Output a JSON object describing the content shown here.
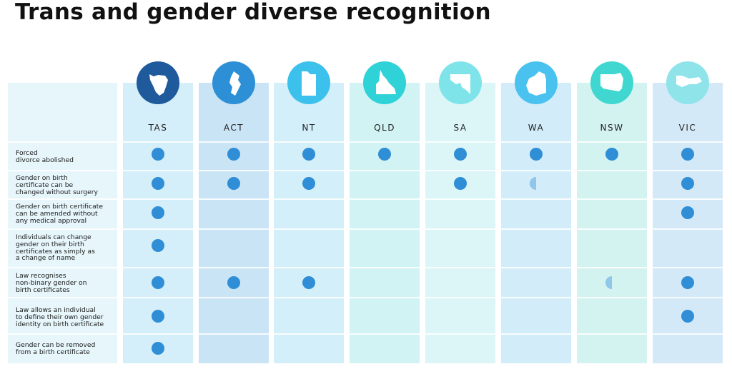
{
  "title": "Trans and gender diverse recognition",
  "colors": {
    "dot": "#2f8ed6",
    "partial_dot": "#8fc6ea"
  },
  "states": [
    {
      "code": "TAS",
      "badge_color": "#1e5a9c",
      "col_color": "#d4eefa",
      "icon": "tasmania-map-icon"
    },
    {
      "code": "ACT",
      "badge_color": "#2d8fd6",
      "col_color": "#c9e4f5",
      "icon": "act-map-icon"
    },
    {
      "code": "NT",
      "badge_color": "#3cc0ec",
      "col_color": "#d3eff9",
      "icon": "northern-territory-map-icon"
    },
    {
      "code": "QLD",
      "badge_color": "#2fd2d6",
      "col_color": "#d2f3f3",
      "icon": "queensland-map-icon"
    },
    {
      "code": "SA",
      "badge_color": "#7fe3ea",
      "col_color": "#dcf6f7",
      "icon": "south-australia-map-icon"
    },
    {
      "code": "WA",
      "badge_color": "#4ac2f0",
      "col_color": "#d2edf9",
      "icon": "western-australia-map-icon"
    },
    {
      "code": "NSW",
      "badge_color": "#3fd7cf",
      "col_color": "#d3f3f1",
      "icon": "nsw-map-icon"
    },
    {
      "code": "VIC",
      "badge_color": "#8fe4ea",
      "col_color": "#d4e9f7",
      "icon": "victoria-map-icon"
    }
  ],
  "rows": [
    {
      "label": "Forced\ndivorce abolished",
      "status": [
        "full",
        "full",
        "full",
        "full",
        "full",
        "full",
        "full",
        "full"
      ]
    },
    {
      "label": "Gender on birth\ncertificate can be\nchanged without surgery",
      "status": [
        "full",
        "full",
        "full",
        "none",
        "full",
        "partial",
        "none",
        "full"
      ]
    },
    {
      "label": "Gender on birth certificate\ncan be amended without\nany medical approval",
      "status": [
        "full",
        "none",
        "none",
        "none",
        "none",
        "none",
        "none",
        "full"
      ]
    },
    {
      "label": "Individuals can change\ngender on their birth\ncertificates as simply as\na change of name",
      "status": [
        "full",
        "none",
        "none",
        "none",
        "none",
        "none",
        "none",
        "none"
      ]
    },
    {
      "label": "Law recognises\nnon-binary gender on\nbirth certificates",
      "status": [
        "full",
        "full",
        "full",
        "none",
        "none",
        "none",
        "partial",
        "full"
      ]
    },
    {
      "label": "Law allows an individual\nto define their own gender\nidentity on birth certificate",
      "status": [
        "full",
        "none",
        "none",
        "none",
        "none",
        "none",
        "none",
        "full"
      ]
    },
    {
      "label": "Gender can be removed\nfrom a birth certificate",
      "status": [
        "full",
        "none",
        "none",
        "none",
        "none",
        "none",
        "none",
        "none"
      ]
    }
  ]
}
